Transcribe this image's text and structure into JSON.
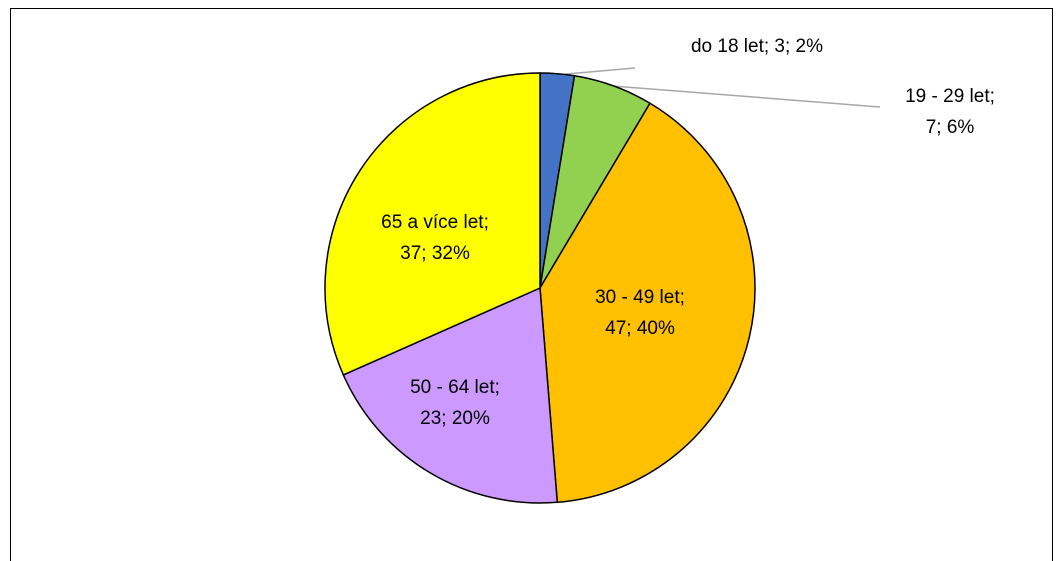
{
  "chart_data": {
    "type": "pie",
    "values": [
      3,
      7,
      47,
      23,
      37
    ],
    "value_labels": [
      [
        "do 18 let; 3; 2%"
      ],
      [
        "19 - 29 let;",
        "7; 6%"
      ],
      [
        "30 - 49 let;",
        "47; 40%"
      ],
      [
        "50 - 64 let;",
        "23; 20%"
      ],
      [
        "65 a více let;",
        "37; 32%"
      ]
    ],
    "colors": [
      "#4472c4",
      "#92d050",
      "#ffc000",
      "#cc99ff",
      "#ffff00"
    ]
  }
}
